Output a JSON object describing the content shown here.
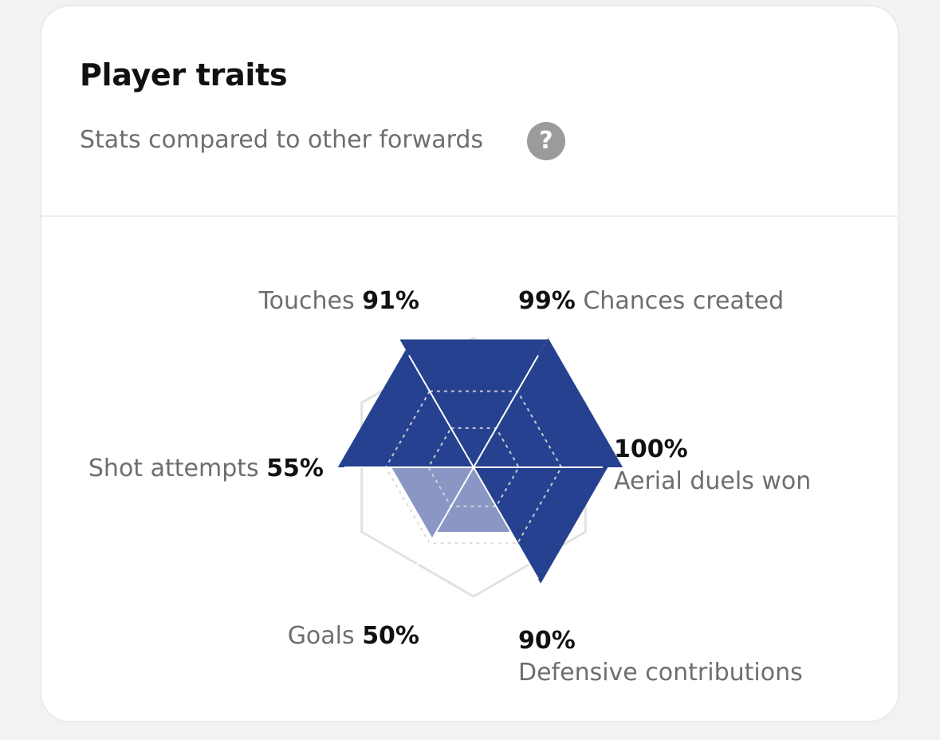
{
  "card": {
    "title": "Player traits",
    "subtitle": "Stats compared to other forwards",
    "help_icon": "question-mark-icon",
    "help_glyph": "?"
  },
  "traits": [
    {
      "name": "Touches",
      "value": "91%"
    },
    {
      "name": "Chances created",
      "value": "99%"
    },
    {
      "name": "Aerial duels won",
      "value": "100%"
    },
    {
      "name": "Defensive contributions",
      "value": "90%"
    },
    {
      "name": "Goals",
      "value": "50%"
    },
    {
      "name": "Shot attempts",
      "value": "55%"
    }
  ],
  "chart_data": {
    "type": "radar",
    "categories": [
      "Touches",
      "Chances created",
      "Aerial duels won",
      "Defensive contributions",
      "Goals",
      "Shot attempts"
    ],
    "values": [
      91,
      99,
      100,
      90,
      50,
      55
    ],
    "ylim": [
      0,
      100
    ],
    "grid": true
  },
  "colors": {
    "fill_strong": "#26418f",
    "fill_light": "#8a97c4",
    "grid_line": "#e2e2e2",
    "text_muted": "#6e6e6e",
    "text_dark": "#111111"
  }
}
